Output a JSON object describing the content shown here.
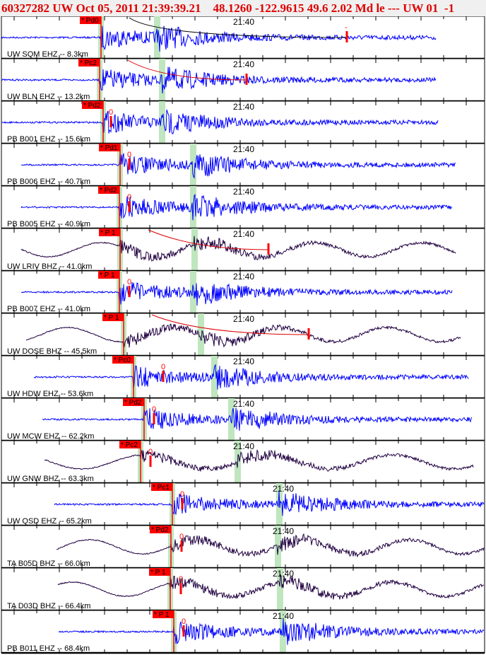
{
  "header": {
    "title": "60327282 UW Oct 05, 2011 21:39:39.21    48.1260 -122.9615 49.6 2.02 Md le --- UW 01  -1"
  },
  "time_label": "21:40",
  "colors": {
    "short_period": "#0000ff",
    "broadband": "#200040",
    "pick": "#ff0000",
    "phase_band": "#bfe6bf"
  },
  "stations": [
    {
      "label": "UW SQM EHZ -- 8.3km",
      "pick": "* Pd0",
      "coda": "-"
    },
    {
      "label": "UW BLN EHZ -- 13.2km",
      "pick": "* Pc2",
      "coda": ""
    },
    {
      "label": "PB B001 EHZ -- 15.6km",
      "pick": "* Pd2",
      "coda": "0"
    },
    {
      "label": "PB B006 EHZ -- 40.7km",
      "pick": "* Pd1",
      "coda": "0"
    },
    {
      "label": "PB B005 EHZ -- 40.9km",
      "pick": "* Pd2",
      "coda": "0"
    },
    {
      "label": "UW LRIV BHZ -- 41.0km",
      "pick": "* P 1",
      "coda": ""
    },
    {
      "label": "PB B007 EHZ -- 41.0km",
      "pick": "* P 1",
      "coda": "0"
    },
    {
      "label": "UW DOSE BHZ -- 45.5km",
      "pick": "* P 1",
      "coda": ""
    },
    {
      "label": "UW HDW EHZ -- 53.6km",
      "pick": "* Pc0",
      "coda": "0"
    },
    {
      "label": "UW MCW EHZ -- 62.2km",
      "pick": "* Pd2",
      "coda": "0"
    },
    {
      "label": "UW GNW BHZ -- 63.3km",
      "pick": "* Pc2",
      "coda": "0"
    },
    {
      "label": "UW QSD EHZ -- 65.2km",
      "pick": "* Pc1",
      "coda": "0"
    },
    {
      "label": "TA B05D BHZ -- 66.0km",
      "pick": "* Pd2",
      "coda": "0"
    },
    {
      "label": "TA D03D BHZ -- 66.4km",
      "pick": "* P 1",
      "coda": "0"
    },
    {
      "label": "PB B011 EHZ -- 68.4km",
      "pick": "* P 1",
      "coda": "0"
    }
  ]
}
